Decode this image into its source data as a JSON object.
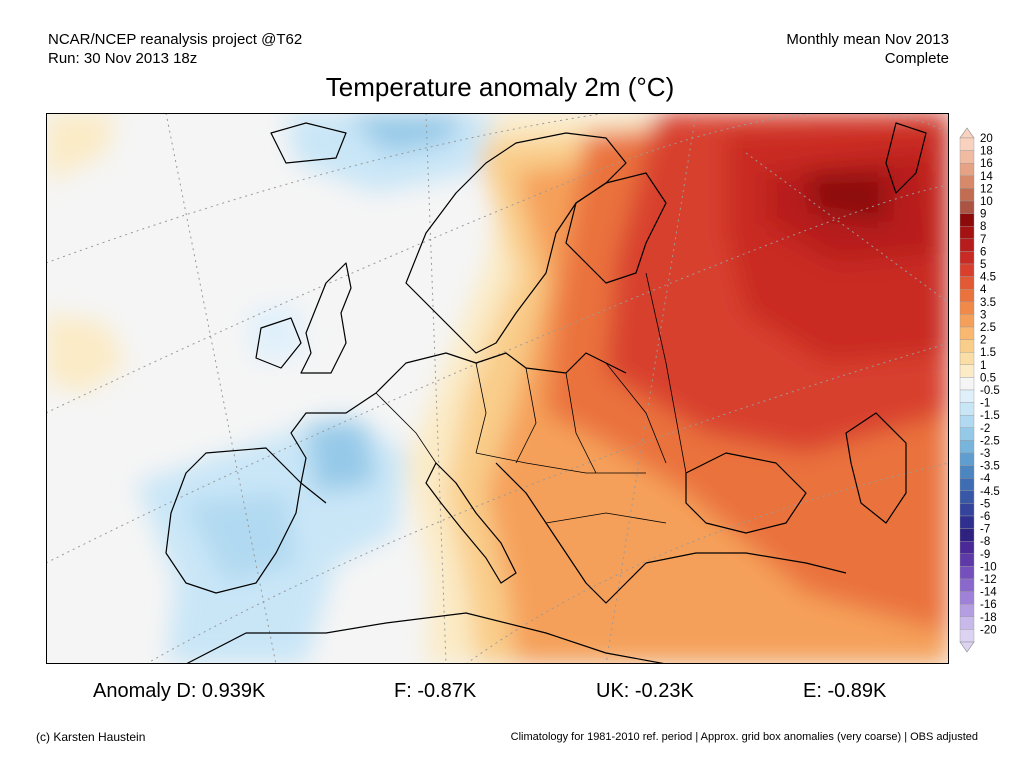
{
  "header": {
    "left_line1": "NCAR/NCEP reanalysis project @T62",
    "left_line2": "Run: 30 Nov 2013 18z",
    "right_line1": "Monthly mean Nov 2013",
    "right_line2": "Complete"
  },
  "title": "Temperature anomaly 2m (°C)",
  "colorbar": {
    "labels": [
      "20",
      "18",
      "16",
      "14",
      "12",
      "10",
      "9",
      "8",
      "7",
      "6",
      "5",
      "4.5",
      "4",
      "3.5",
      "3",
      "2.5",
      "2",
      "1.5",
      "1",
      "0.5",
      "-0.5",
      "-1",
      "-1.5",
      "-2",
      "-2.5",
      "-3",
      "-3.5",
      "-4",
      "-4.5",
      "-5",
      "-6",
      "-7",
      "-8",
      "-9",
      "-10",
      "-12",
      "-14",
      "-16",
      "-18",
      "-20"
    ],
    "colors": [
      "#f9d2bf",
      "#f0bba2",
      "#e5a284",
      "#d8896a",
      "#c26c52",
      "#ab5443",
      "#8c0a0a",
      "#a41212",
      "#b81d1d",
      "#c92a24",
      "#d8402d",
      "#e25a35",
      "#ea723c",
      "#f18a48",
      "#f5a05a",
      "#f8b870",
      "#f9cd8a",
      "#fadea6",
      "#fbebc6",
      "#f5f5f5",
      "#dff0fb",
      "#c9e6f7",
      "#b1d9f1",
      "#95c9e8",
      "#78b5dd",
      "#5f9ecf",
      "#4c86c0",
      "#3f6db3",
      "#3858a7",
      "#34439c",
      "#2e2f8f",
      "#2f2180",
      "#4a2a96",
      "#5d3aa8",
      "#7550bd",
      "#8a68cc",
      "#9f82d8",
      "#b59de2",
      "#c9b8ea",
      "#dcd2f2"
    ],
    "top_arrow_color": "#f9d2bf",
    "bottom_arrow_color": "#dcd2f2"
  },
  "anomalies": [
    {
      "label": "Anomaly D: 0.939K"
    },
    {
      "label": "F: -0.87K"
    },
    {
      "label": "UK: -0.23K"
    },
    {
      "label": "E: -0.89K"
    }
  ],
  "footer": {
    "left": "(c) Karsten Haustein",
    "right": "Climatology for 1981-2010 ref. period | Approx. grid box anomalies (very coarse) | OBS adjusted"
  }
}
